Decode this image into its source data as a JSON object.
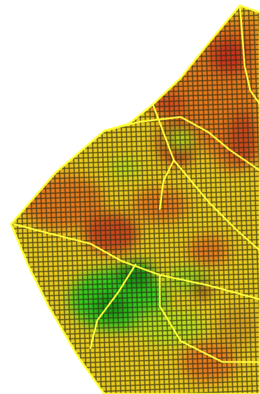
{
  "map": {
    "kind": "field-heatmap-raster",
    "background": "#ffffff",
    "grid_line_color": "#2a2a12",
    "boundary_line_color": "#ffff3c",
    "palette": {
      "high": "#c8321e",
      "mid_high": "#e2781e",
      "mid": "#e6c81e",
      "low_mid": "#b4dc1e",
      "low": "#32c81e",
      "lowest": "#148c14"
    },
    "labels": []
  }
}
